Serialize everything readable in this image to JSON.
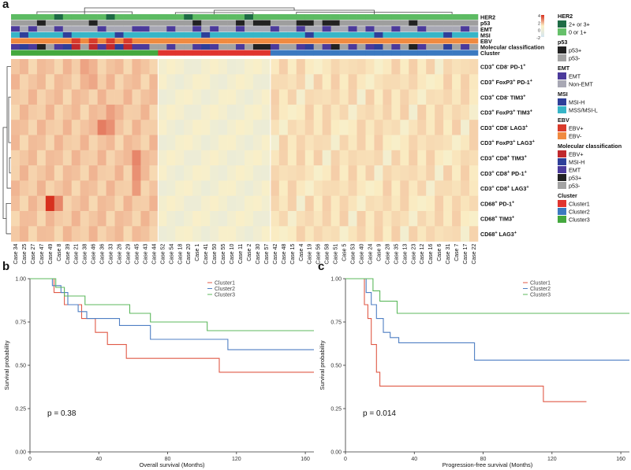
{
  "panels": {
    "a": "a",
    "b": "b",
    "c": "c"
  },
  "chart_data": [
    {
      "type": "heatmap",
      "panel": "a",
      "columns": [
        "Case 34",
        "Case 25",
        "Case 27",
        "Case 47",
        "Case 49",
        "Case 8",
        "Case 39",
        "Case 21",
        "Case 38",
        "Case 46",
        "Case 36",
        "Case 33",
        "Case 26",
        "Case 29",
        "Case 45",
        "Case 43",
        "Case 44",
        "Case 52",
        "Case 54",
        "Case 18",
        "Case 20",
        "Case 1",
        "Case 41",
        "Case 50",
        "Case 55",
        "Case 10",
        "Case 11",
        "Case 2",
        "Case 30",
        "Case 57",
        "Case 42",
        "Case 48",
        "Case 15",
        "Case 4",
        "Case 19",
        "Case 56",
        "Case 58",
        "Case 51",
        "Case 5",
        "Case 53",
        "Case 40",
        "Case 24",
        "Case 9",
        "Case 28",
        "Case 35",
        "Case 13",
        "Case 23",
        "Case 12",
        "Case 16",
        "Case 6",
        "Case 31",
        "Case 7",
        "Case 17",
        "Case 22"
      ],
      "rows": [
        {
          "label": "CD3+ CD8- PD-1+",
          "parts": [
            [
              "CD3",
              ""
            ],
            [
              "+",
              "sup"
            ],
            [
              " CD8",
              ""
            ],
            [
              "-",
              "sup"
            ],
            [
              " PD-1",
              ""
            ],
            [
              "+",
              "sup"
            ]
          ]
        },
        {
          "label": "CD3+ FoxP3+ PD-1+",
          "parts": [
            [
              "CD3",
              ""
            ],
            [
              "+",
              "sup"
            ],
            [
              " FoxP3",
              ""
            ],
            [
              "+",
              "sup"
            ],
            [
              " PD-1",
              ""
            ],
            [
              "+",
              "sup"
            ]
          ]
        },
        {
          "label": "CD3+ CD8- TIM3+",
          "parts": [
            [
              "CD3",
              ""
            ],
            [
              "+",
              "sup"
            ],
            [
              " CD8",
              ""
            ],
            [
              "-",
              "sup"
            ],
            [
              " TIM3",
              ""
            ],
            [
              "+",
              "sup"
            ]
          ]
        },
        {
          "label": "CD3+ FoxP3+ TIM3+",
          "parts": [
            [
              "CD3",
              ""
            ],
            [
              "+",
              "sup"
            ],
            [
              " FoxP3",
              ""
            ],
            [
              "+",
              "sup"
            ],
            [
              " TIM3",
              ""
            ],
            [
              "+",
              "sup"
            ]
          ]
        },
        {
          "label": "CD3+ CD8- LAG3+",
          "parts": [
            [
              "CD3",
              ""
            ],
            [
              "+",
              "sup"
            ],
            [
              " CD8",
              ""
            ],
            [
              "-",
              "sup"
            ],
            [
              " LAG3",
              ""
            ],
            [
              "+",
              "sup"
            ]
          ]
        },
        {
          "label": "CD3+ FoxP3+ LAG3+",
          "parts": [
            [
              "CD3",
              ""
            ],
            [
              "+",
              "sup"
            ],
            [
              " FoxP3",
              ""
            ],
            [
              "+",
              "sup"
            ],
            [
              " LAG3",
              ""
            ],
            [
              "+",
              "sup"
            ]
          ]
        },
        {
          "label": "CD3+ CD8+ TIM3+",
          "parts": [
            [
              "CD3",
              ""
            ],
            [
              "+",
              "sup"
            ],
            [
              " CD8",
              ""
            ],
            [
              "+",
              "sup"
            ],
            [
              " TIM3",
              ""
            ],
            [
              "+",
              "sup"
            ]
          ]
        },
        {
          "label": "CD3+ CD8+ PD-1+",
          "parts": [
            [
              "CD3",
              ""
            ],
            [
              "+",
              "sup"
            ],
            [
              " CD8",
              ""
            ],
            [
              "+",
              "sup"
            ],
            [
              " PD-1",
              ""
            ],
            [
              "+",
              "sup"
            ]
          ]
        },
        {
          "label": "CD3+ CD8+ LAG3+",
          "parts": [
            [
              "CD3",
              ""
            ],
            [
              "+",
              "sup"
            ],
            [
              " CD8",
              ""
            ],
            [
              "+",
              "sup"
            ],
            [
              " LAG3",
              ""
            ],
            [
              "+",
              "sup"
            ]
          ]
        },
        {
          "label": "CD68+ PD-1+",
          "parts": [
            [
              "CD68",
              ""
            ],
            [
              "+",
              "sup"
            ],
            [
              " PD-1",
              ""
            ],
            [
              "+",
              "sup"
            ]
          ]
        },
        {
          "label": "CD68+ TIM3+",
          "parts": [
            [
              "CD68",
              ""
            ],
            [
              "+",
              "sup"
            ],
            [
              " TIM3",
              ""
            ],
            [
              "+",
              "sup"
            ]
          ]
        },
        {
          "label": "CD68+ LAG3+",
          "parts": [
            [
              "CD68",
              ""
            ],
            [
              "+",
              "sup"
            ],
            [
              " LAG3",
              ""
            ],
            [
              "+",
              "sup"
            ]
          ]
        }
      ],
      "cluster_sizes": [
        17,
        13,
        24
      ],
      "annotation_tracks": [
        {
          "name": "HER2",
          "highlight_columns": [
            5,
            11,
            20,
            27
          ],
          "highlight": "#1e6b45",
          "base": "#5dbb63"
        },
        {
          "name": "p53",
          "highlight_columns": [
            3,
            9,
            21,
            26,
            28,
            29,
            33,
            34,
            36,
            37,
            46
          ],
          "highlight": "#222222",
          "base": "#9e9e9e"
        },
        {
          "name": "EMT",
          "highlight_columns": [
            0,
            2,
            5,
            10,
            14,
            15,
            18,
            21,
            23,
            26,
            30,
            33,
            36,
            39,
            41,
            44,
            47,
            52
          ],
          "highlight": "#4b3a9b",
          "base": "#a8a8b4"
        },
        {
          "name": "MSI",
          "highlight_columns": [
            1,
            6,
            12,
            22,
            34,
            42,
            50
          ],
          "highlight": "#2e3f99",
          "base": "#37b5c7"
        },
        {
          "name": "EBV",
          "highlight_columns": [
            7,
            9,
            11,
            13
          ],
          "highlight": "#d93b2b",
          "base": "#f08a40"
        },
        {
          "name": "Molecular classification",
          "base": "#9e9e9e"
        },
        {
          "name": "Cluster",
          "per_cluster": [
            "#44a83e",
            "#e0342f",
            "#3b79c0"
          ]
        }
      ],
      "colors": {
        "low": "#d4e6f1",
        "mid": "#fbf0c6",
        "high": "#d7301f"
      },
      "legend": [
        {
          "title": "HER2",
          "items": [
            {
              "color": "#1e6b45",
              "label": "2+ or 3+"
            },
            {
              "color": "#66c06a",
              "label": "0 or 1+"
            }
          ]
        },
        {
          "title": "p53",
          "items": [
            {
              "color": "#222222",
              "label": "p53+"
            },
            {
              "color": "#a3a3a3",
              "label": "p53-"
            }
          ]
        },
        {
          "title": "EMT",
          "items": [
            {
              "color": "#4b3a9b",
              "label": "EMT"
            },
            {
              "color": "#a8a8b4",
              "label": "Non-EMT"
            }
          ]
        },
        {
          "title": "MSI",
          "items": [
            {
              "color": "#2e3f99",
              "label": "MSI-H"
            },
            {
              "color": "#37b5c7",
              "label": "MSS/MSI-L"
            }
          ]
        },
        {
          "title": "EBV",
          "items": [
            {
              "color": "#d93b2b",
              "label": "EBV+"
            },
            {
              "color": "#f08a40",
              "label": "EBV-"
            }
          ]
        },
        {
          "title": "Molecular classification",
          "items": [
            {
              "color": "#c0282d",
              "label": "EBV+"
            },
            {
              "color": "#2e3f99",
              "label": "MSI-H"
            },
            {
              "color": "#4b3a9b",
              "label": "EMT"
            },
            {
              "color": "#222222",
              "label": "p53+"
            },
            {
              "color": "#a3a3a3",
              "label": "p53-"
            }
          ]
        },
        {
          "title": "Cluster",
          "items": [
            {
              "color": "#e0342f",
              "label": "Cluster1"
            },
            {
              "color": "#3b79c0",
              "label": "Cluster2"
            },
            {
              "color": "#44a83e",
              "label": "Cluster3"
            }
          ]
        }
      ],
      "scale_ticks": [
        "4",
        "2",
        "0",
        "-2"
      ]
    },
    {
      "type": "line",
      "panel": "b",
      "xlabel": "Overall survival (Months)",
      "ylabel": "Survival probability",
      "xlim": [
        0,
        165
      ],
      "ylim": [
        0,
        1
      ],
      "xticks": [
        0,
        40,
        80,
        120,
        160
      ],
      "yticks": [
        0.0,
        0.25,
        0.5,
        0.75,
        1.0
      ],
      "annotation": "p = 0.38",
      "legend": "top-right",
      "series": [
        {
          "name": "Cluster1",
          "color": "#e05a47",
          "x": [
            0,
            14,
            14,
            20,
            20,
            30,
            30,
            38,
            38,
            45,
            45,
            56,
            56,
            110,
            110,
            165
          ],
          "y": [
            1.0,
            1.0,
            0.92,
            0.92,
            0.85,
            0.85,
            0.77,
            0.77,
            0.69,
            0.69,
            0.62,
            0.62,
            0.54,
            0.54,
            0.46,
            0.46
          ]
        },
        {
          "name": "Cluster2",
          "color": "#4f7fc4",
          "x": [
            0,
            13,
            13,
            18,
            18,
            22,
            22,
            28,
            28,
            33,
            33,
            52,
            52,
            70,
            70,
            115,
            115,
            165
          ],
          "y": [
            1.0,
            1.0,
            0.96,
            0.96,
            0.92,
            0.92,
            0.85,
            0.85,
            0.81,
            0.81,
            0.77,
            0.77,
            0.73,
            0.73,
            0.65,
            0.65,
            0.59,
            0.59
          ]
        },
        {
          "name": "Cluster3",
          "color": "#5cb85c",
          "x": [
            0,
            15,
            15,
            20,
            20,
            32,
            32,
            58,
            58,
            70,
            70,
            103,
            103,
            165
          ],
          "y": [
            1.0,
            1.0,
            0.95,
            0.95,
            0.9,
            0.9,
            0.85,
            0.85,
            0.8,
            0.8,
            0.75,
            0.75,
            0.7,
            0.7
          ]
        }
      ]
    },
    {
      "type": "line",
      "panel": "c",
      "xlabel": "Progression-free survival (Months)",
      "ylabel": "Survival probability",
      "xlim": [
        0,
        165
      ],
      "ylim": [
        0,
        1
      ],
      "xticks": [
        0,
        40,
        80,
        120,
        160
      ],
      "yticks": [
        0.0,
        0.25,
        0.5,
        0.75,
        1.0
      ],
      "annotation": "p = 0.014",
      "legend": "top-right",
      "series": [
        {
          "name": "Cluster1",
          "color": "#e05a47",
          "x": [
            0,
            11,
            11,
            13,
            13,
            15,
            15,
            18,
            18,
            20,
            20,
            24,
            24,
            115,
            115,
            140
          ],
          "y": [
            1.0,
            1.0,
            0.85,
            0.85,
            0.77,
            0.77,
            0.62,
            0.62,
            0.46,
            0.46,
            0.38,
            0.38,
            0.38,
            0.38,
            0.29,
            0.29
          ]
        },
        {
          "name": "Cluster2",
          "color": "#4f7fc4",
          "x": [
            0,
            12,
            12,
            15,
            15,
            18,
            18,
            22,
            22,
            26,
            26,
            31,
            31,
            75,
            75,
            165
          ],
          "y": [
            1.0,
            1.0,
            0.92,
            0.92,
            0.85,
            0.85,
            0.77,
            0.77,
            0.69,
            0.69,
            0.66,
            0.66,
            0.63,
            0.63,
            0.53,
            0.53
          ]
        },
        {
          "name": "Cluster3",
          "color": "#5cb85c",
          "x": [
            0,
            16,
            16,
            20,
            20,
            30,
            30,
            165
          ],
          "y": [
            1.0,
            1.0,
            0.93,
            0.93,
            0.87,
            0.87,
            0.8,
            0.8
          ]
        }
      ]
    }
  ]
}
